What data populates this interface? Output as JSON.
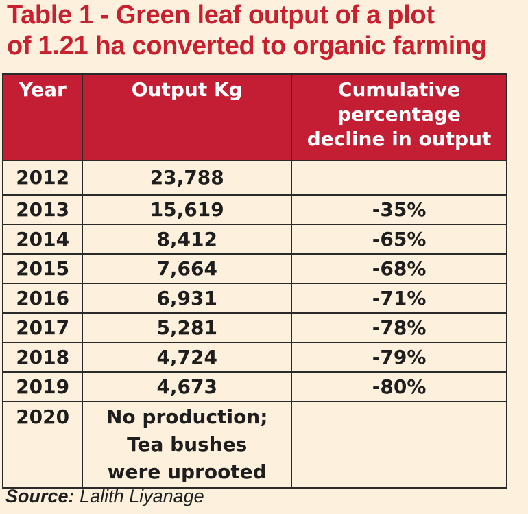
{
  "title": {
    "line1": "Table 1 - Green leaf output of a plot",
    "line2": "of 1.21 ha converted to organic farming"
  },
  "table": {
    "headers": {
      "year": "Year",
      "output": "Output Kg",
      "decline_line1": "Cumulative",
      "decline_line2": "percentage",
      "decline_line3": "decline in output"
    },
    "rows": [
      {
        "year": "2012",
        "output": "23,788",
        "decline": ""
      },
      {
        "year": "2013",
        "output": "15,619",
        "decline": "-35%"
      },
      {
        "year": "2014",
        "output": "8,412",
        "decline": "-65%"
      },
      {
        "year": "2015",
        "output": "7,664",
        "decline": "-68%"
      },
      {
        "year": "2016",
        "output": "6,931",
        "decline": "-71%"
      },
      {
        "year": "2017",
        "output": "5,281",
        "decline": "-78%"
      },
      {
        "year": "2018",
        "output": "4,724",
        "decline": "-79%"
      },
      {
        "year": "2019",
        "output": "4,673",
        "decline": "-80%"
      }
    ],
    "final_row": {
      "year": "2020",
      "output_line1": "No production;",
      "output_line2": "Tea bushes",
      "output_line3": "were uprooted",
      "decline": ""
    }
  },
  "source": {
    "label": "Source:",
    "text": "Lalith Liyanage"
  },
  "colors": {
    "title": "#c8202f",
    "header_bg": "#c41e34",
    "page_bg": "#fdf0dd",
    "border": "#2a2a2a"
  }
}
